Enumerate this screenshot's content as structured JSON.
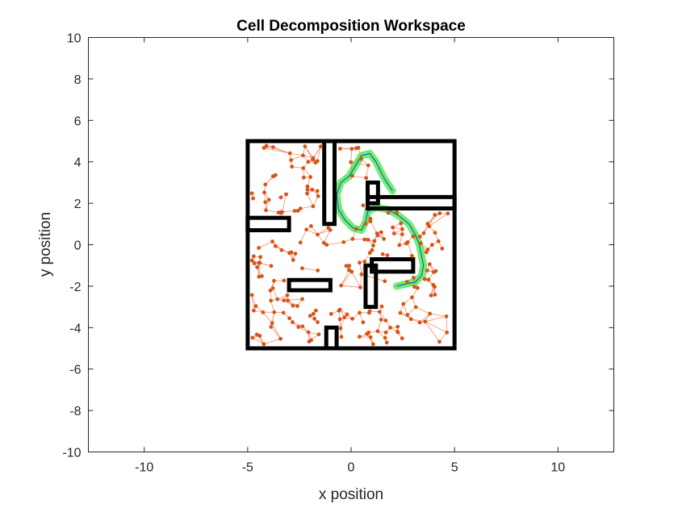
{
  "chart_data": {
    "type": "scatter",
    "title": "Cell Decomposition Workspace",
    "xlabel": "x position",
    "ylabel": "y position",
    "xlim": [
      -12.7,
      12.7
    ],
    "ylim": [
      -10,
      10
    ],
    "xticks": [
      -10,
      -5,
      0,
      5,
      10
    ],
    "yticks": [
      -10,
      -8,
      -6,
      -4,
      -2,
      0,
      2,
      4,
      6,
      8,
      10
    ],
    "grid": false,
    "legend": "none",
    "colors": {
      "walls": "#000000",
      "nodes": "#d95319",
      "edges": "#f0906a",
      "path": "#3ee83e",
      "path_line": "#1f3fd6",
      "axes": "#262626"
    },
    "walls": [
      {
        "name": "boundary",
        "closed": true,
        "points": [
          [
            -5,
            -5
          ],
          [
            5,
            -5
          ],
          [
            5,
            5
          ],
          [
            -5,
            5
          ]
        ]
      },
      {
        "name": "top-divider",
        "closed": true,
        "points": [
          [
            -1.3,
            1.0
          ],
          [
            -0.8,
            1.0
          ],
          [
            -0.8,
            5.0
          ],
          [
            -1.3,
            5.0
          ]
        ]
      },
      {
        "name": "left-shelf",
        "closed": true,
        "points": [
          [
            -5.0,
            0.7
          ],
          [
            -3.0,
            0.7
          ],
          [
            -3.0,
            1.3
          ],
          [
            -5.0,
            1.3
          ]
        ]
      },
      {
        "name": "right-shelf",
        "closed": true,
        "points": [
          [
            0.8,
            1.75
          ],
          [
            5.0,
            1.75
          ],
          [
            5.0,
            2.3
          ],
          [
            0.8,
            2.3
          ]
        ]
      },
      {
        "name": "small-block",
        "closed": true,
        "points": [
          [
            0.8,
            2.0
          ],
          [
            1.3,
            2.0
          ],
          [
            1.3,
            3.0
          ],
          [
            0.8,
            3.0
          ]
        ]
      },
      {
        "name": "mid-bar",
        "closed": true,
        "points": [
          [
            -3.0,
            -2.2
          ],
          [
            -1.0,
            -2.2
          ],
          [
            -1.0,
            -1.7
          ],
          [
            -3.0,
            -1.7
          ]
        ]
      },
      {
        "name": "vertical-bar",
        "closed": true,
        "points": [
          [
            0.7,
            -3.0
          ],
          [
            1.2,
            -3.0
          ],
          [
            1.2,
            -1.0
          ],
          [
            0.7,
            -1.0
          ]
        ]
      },
      {
        "name": "horizontal-bar",
        "closed": true,
        "points": [
          [
            1.0,
            -1.3
          ],
          [
            3.0,
            -1.3
          ],
          [
            3.0,
            -0.7
          ],
          [
            1.0,
            -0.7
          ]
        ]
      },
      {
        "name": "bottom-stub",
        "closed": true,
        "points": [
          [
            -1.2,
            -5.0
          ],
          [
            -0.7,
            -5.0
          ],
          [
            -0.7,
            -4.0
          ],
          [
            -1.2,
            -4.0
          ]
        ]
      }
    ],
    "nodes_seed": 7,
    "node_count": 230,
    "path": [
      [
        2.0,
        2.6
      ],
      [
        1.6,
        3.2
      ],
      [
        1.2,
        4.0
      ],
      [
        0.9,
        4.4
      ],
      [
        0.5,
        4.3
      ],
      [
        0.2,
        3.8
      ],
      [
        -0.1,
        3.3
      ],
      [
        -0.5,
        3.0
      ],
      [
        -0.7,
        2.4
      ],
      [
        -0.6,
        1.7
      ],
      [
        -0.3,
        1.2
      ],
      [
        0.1,
        0.8
      ],
      [
        0.5,
        0.7
      ],
      [
        0.7,
        1.1
      ],
      [
        0.8,
        1.6
      ],
      [
        1.2,
        1.8
      ],
      [
        1.8,
        1.7
      ],
      [
        2.3,
        1.4
      ],
      [
        2.8,
        1.0
      ],
      [
        3.1,
        0.5
      ],
      [
        3.3,
        0.0
      ],
      [
        3.4,
        -0.5
      ],
      [
        3.5,
        -1.0
      ],
      [
        3.4,
        -1.5
      ],
      [
        3.1,
        -1.8
      ],
      [
        2.6,
        -1.9
      ],
      [
        2.2,
        -2.0
      ]
    ]
  }
}
